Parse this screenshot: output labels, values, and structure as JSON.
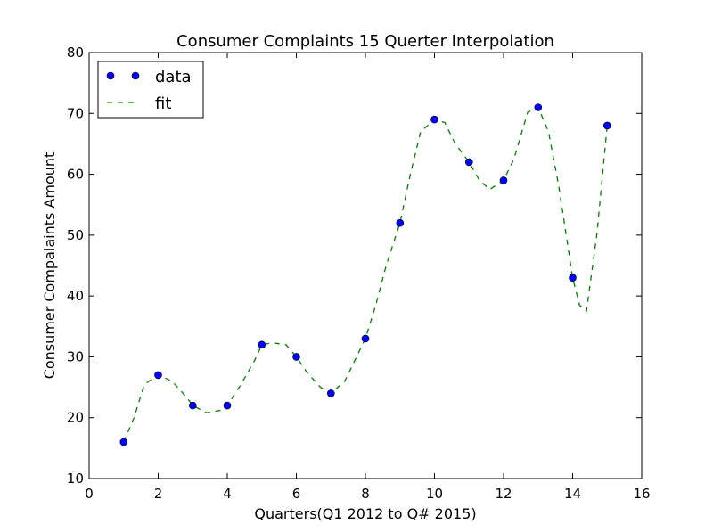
{
  "chart_data": {
    "type": "line",
    "title": "Consumer Complaints 15 Querter Interpolation",
    "xlabel": "Quarters(Q1 2012 to Q# 2015)",
    "ylabel": "Consumer Compalaints Amount",
    "xlim": [
      0,
      16
    ],
    "ylim": [
      10,
      80
    ],
    "xticks": [
      0,
      2,
      4,
      6,
      8,
      10,
      12,
      14,
      16
    ],
    "yticks": [
      10,
      20,
      30,
      40,
      50,
      60,
      70,
      80
    ],
    "grid": false,
    "legend_position": "top-left",
    "series": [
      {
        "name": "data",
        "style": "markers",
        "color": "#0000ff",
        "x": [
          1,
          2,
          3,
          4,
          5,
          6,
          7,
          8,
          9,
          10,
          11,
          12,
          13,
          14,
          15
        ],
        "y": [
          16,
          27,
          22,
          22,
          32,
          30,
          24,
          33,
          52,
          69,
          62,
          59,
          71,
          43,
          68
        ]
      },
      {
        "name": "fit",
        "style": "dashed",
        "color": "#008000",
        "x": [
          1,
          1.3,
          1.6,
          2,
          2.4,
          2.8,
          3,
          3.4,
          3.8,
          4,
          4.4,
          4.8,
          5,
          5.3,
          5.7,
          6,
          6.3,
          6.7,
          7,
          7.4,
          7.7,
          8,
          8.3,
          8.6,
          9,
          9.3,
          9.6,
          10,
          10.3,
          10.6,
          11,
          11.3,
          11.6,
          12,
          12.3,
          12.7,
          13,
          13.3,
          13.6,
          14,
          14.2,
          14.4,
          14.7,
          15
        ],
        "y": [
          16,
          20,
          25.5,
          27,
          26,
          23.5,
          22,
          20.8,
          21.2,
          22,
          25.5,
          29.5,
          32,
          32.3,
          32,
          30,
          27.5,
          25,
          24,
          26,
          29.5,
          33,
          38.5,
          45,
          52,
          60,
          67,
          69,
          68.5,
          65,
          62,
          59,
          57.5,
          59,
          62.5,
          70.2,
          71,
          67,
          58,
          43,
          38.5,
          37.5,
          50,
          68
        ]
      }
    ]
  }
}
